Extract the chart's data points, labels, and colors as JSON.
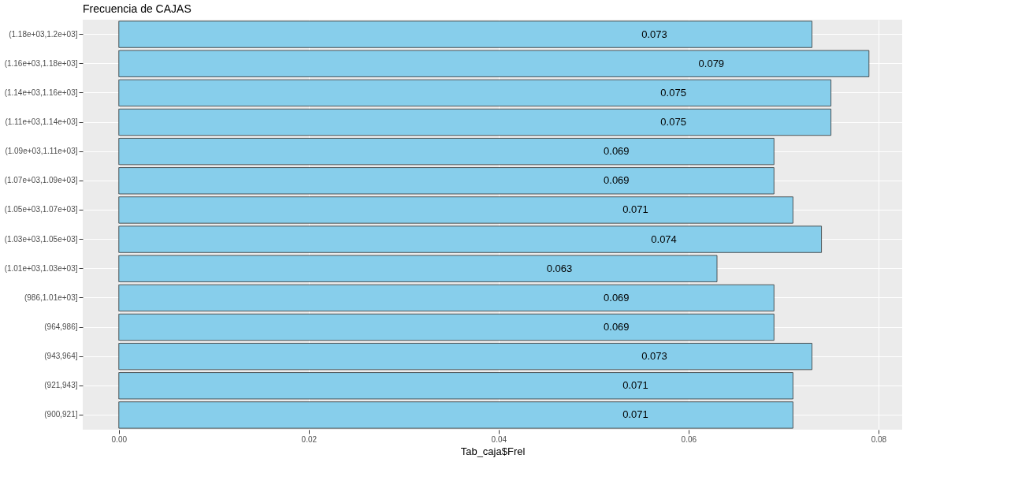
{
  "chart_data": {
    "type": "bar",
    "orientation": "horizontal",
    "title": "Frecuencia de CAJAS",
    "xlabel": "Tab_caja$Frel",
    "categories": [
      "(1.18e+03,1.2e+03]",
      "(1.16e+03,1.18e+03]",
      "(1.14e+03,1.16e+03]",
      "(1.11e+03,1.14e+03]",
      "(1.09e+03,1.11e+03]",
      "(1.07e+03,1.09e+03]",
      "(1.05e+03,1.07e+03]",
      "(1.03e+03,1.05e+03]",
      "(1.01e+03,1.03e+03]",
      "(986,1.01e+03]",
      "(964,986]",
      "(943,964]",
      "(921,943]",
      "(900,921]"
    ],
    "values": [
      0.073,
      0.079,
      0.075,
      0.075,
      0.069,
      0.069,
      0.071,
      0.074,
      0.063,
      0.069,
      0.069,
      0.073,
      0.071,
      0.071
    ],
    "color": "#87ceeb",
    "xlim": [
      -0.0038,
      0.0825
    ],
    "xticks": [
      {
        "value": 0,
        "label": "0.00"
      },
      {
        "value": 0.02,
        "label": "0.02"
      },
      {
        "value": 0.04,
        "label": "0.04"
      },
      {
        "value": 0.06,
        "label": "0.06"
      },
      {
        "value": 0.08,
        "label": "0.08"
      }
    ],
    "grid": true,
    "data_labels": true
  }
}
